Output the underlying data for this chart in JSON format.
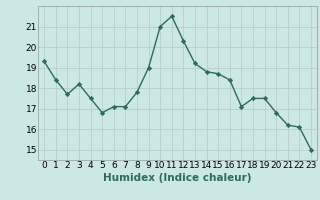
{
  "x": [
    0,
    1,
    2,
    3,
    4,
    5,
    6,
    7,
    8,
    9,
    10,
    11,
    12,
    13,
    14,
    15,
    16,
    17,
    18,
    19,
    20,
    21,
    22,
    23
  ],
  "y": [
    19.3,
    18.4,
    17.7,
    18.2,
    17.5,
    16.8,
    17.1,
    17.1,
    17.8,
    19.0,
    21.0,
    21.5,
    20.3,
    19.2,
    18.8,
    18.7,
    18.4,
    17.1,
    17.5,
    17.5,
    16.8,
    16.2,
    16.1,
    15.0
  ],
  "line_color": "#2d6b5e",
  "marker": "D",
  "marker_size": 2.2,
  "bg_color": "#cce8e4",
  "grid_color": "#b8c8c5",
  "xlabel": "Humidex (Indice chaleur)",
  "ylim": [
    14.5,
    22.0
  ],
  "yticks": [
    15,
    16,
    17,
    18,
    19,
    20,
    21
  ],
  "xticks": [
    0,
    1,
    2,
    3,
    4,
    5,
    6,
    7,
    8,
    9,
    10,
    11,
    12,
    13,
    14,
    15,
    16,
    17,
    18,
    19,
    20,
    21,
    22,
    23
  ],
  "xlabel_fontsize": 7.5,
  "tick_fontsize": 6.5,
  "line_width": 1.0
}
